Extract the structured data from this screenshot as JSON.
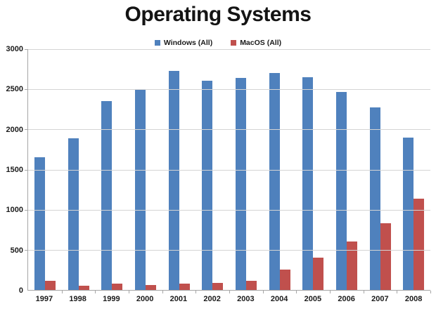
{
  "title": "Operating Systems",
  "colors": {
    "windows": "#4f81bd",
    "macos": "#c0504d",
    "gridline": "#d4d4d4",
    "axis": "#a6a6a6",
    "text": "#1a1a1a"
  },
  "chart_data": {
    "type": "bar",
    "title": "Operating Systems",
    "categories": [
      "1997",
      "1998",
      "1999",
      "2000",
      "2001",
      "2002",
      "2003",
      "2004",
      "2005",
      "2006",
      "2007",
      "2008"
    ],
    "series": [
      {
        "name": "Windows (All)",
        "color": "#4f81bd",
        "values": [
          1650,
          1890,
          2350,
          2500,
          2730,
          2610,
          2640,
          2700,
          2650,
          2470,
          2270,
          1900
        ]
      },
      {
        "name": "MacOS (All)",
        "color": "#c0504d",
        "values": [
          110,
          55,
          80,
          65,
          75,
          90,
          110,
          250,
          400,
          600,
          830,
          1140
        ]
      }
    ],
    "xlabel": "",
    "ylabel": "",
    "ylim": [
      0,
      3000
    ],
    "yticks": [
      0,
      500,
      1000,
      1500,
      2000,
      2500,
      3000
    ],
    "grid": true,
    "legend_position": "top-center",
    "background": "#ffffff"
  }
}
